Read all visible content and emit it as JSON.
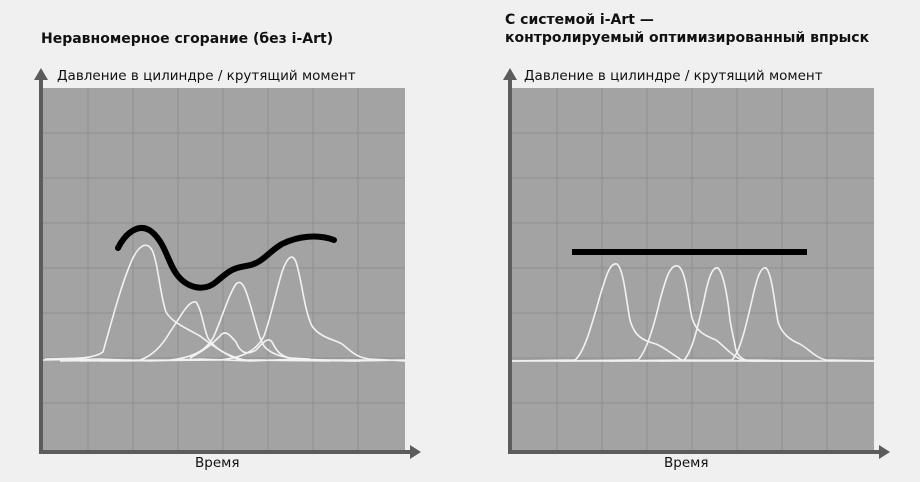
{
  "left": {
    "title": "Неравномерное сгорание (без i-Art)",
    "ylabel": "Давление в цилиндре / крутящий момент",
    "xlabel": "Время"
  },
  "right": {
    "title_line1": "С системой i-Art —",
    "title_line2": "контролируемый оптимизированный впрыск",
    "ylabel": "Давление в цилиндре / крутящий момент",
    "xlabel": "Время"
  },
  "colors": {
    "plot_bg": "#a3a3a3",
    "grid": "#8f8f8f",
    "axis": "#5c5c5c",
    "trace": "#f2f2f2",
    "torque": "#000000",
    "page_bg": "#f0f0f0"
  }
}
